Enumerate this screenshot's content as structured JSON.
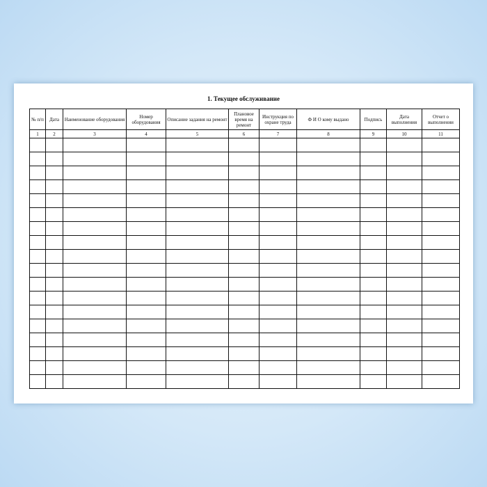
{
  "title": "1. Текущее обслуживание",
  "columns": [
    {
      "header": "№ п/п",
      "number": "1"
    },
    {
      "header": "Дата",
      "number": "2"
    },
    {
      "header": "Наименование оборудования",
      "number": "3"
    },
    {
      "header": "Номер оборудования",
      "number": "4"
    },
    {
      "header": "Описание задания на ремонт",
      "number": "5"
    },
    {
      "header": "Плановое время на ремонт",
      "number": "6"
    },
    {
      "header": "Инструкция по охране труда",
      "number": "7"
    },
    {
      "header": "Ф И О  кому выдано",
      "number": "8"
    },
    {
      "header": "Подпись",
      "number": "9"
    },
    {
      "header": "Дата выполнения",
      "number": "10"
    },
    {
      "header": "Отчет о выполнении",
      "number": "11"
    }
  ],
  "empty_rows": 18
}
